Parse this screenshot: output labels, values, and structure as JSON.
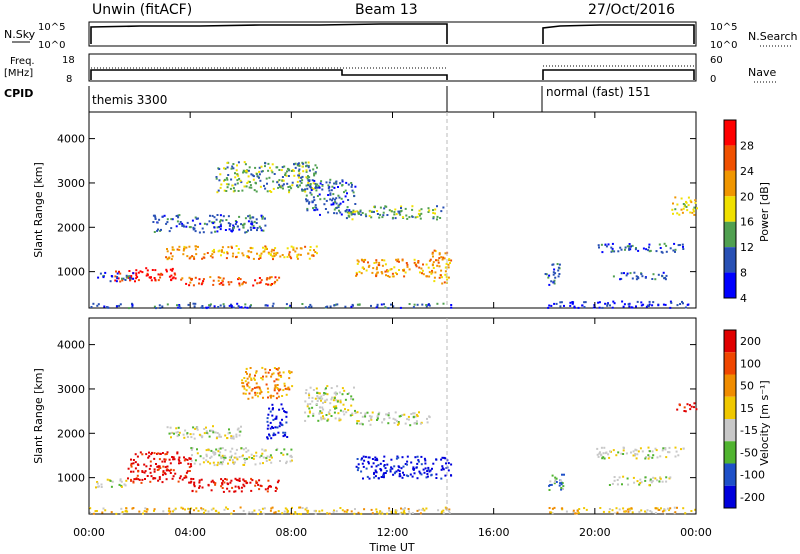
{
  "header": {
    "station": "Unwin (fitACF)",
    "beam": "Beam 13",
    "date": "27/Oct/2016"
  },
  "strips": {
    "nsky": {
      "label": "N.Sky",
      "ticks": [
        "10^5",
        "10^0"
      ]
    },
    "nsearch": {
      "label": "N.Search",
      "ticks": [
        "10^5",
        "10^0"
      ]
    },
    "freq": {
      "label_line1": "Freq.",
      "label_line2": "[MHz]",
      "ticks": [
        "18",
        "8"
      ]
    },
    "nave": {
      "label": "Nave",
      "ticks": [
        "60",
        "0"
      ]
    },
    "cpid": {
      "label": "CPID",
      "segments": [
        "themis 3300",
        "normal (fast) 151"
      ]
    }
  },
  "panels": {
    "power": {
      "ylabel": "Slant Range [km]",
      "yticks": [
        "4000",
        "3000",
        "2000",
        "1000"
      ],
      "colorbar_label": "Power [dB]",
      "colorbar_ticks": [
        "28",
        "24",
        "20",
        "16",
        "12",
        "8",
        "4"
      ]
    },
    "velocity": {
      "ylabel": "Slant Range [km]",
      "yticks": [
        "4000",
        "3000",
        "2000",
        "1000"
      ],
      "colorbar_label": "Velocity [m s⁻¹]",
      "colorbar_ticks": [
        "200",
        "100",
        "50",
        "15",
        "-15",
        "-50",
        "-100",
        "-200"
      ]
    }
  },
  "xaxis": {
    "label": "Time UT",
    "ticks": [
      "00:00",
      "04:00",
      "08:00",
      "12:00",
      "16:00",
      "20:00",
      "00:00"
    ]
  },
  "chart_data": {
    "type": "heatmap",
    "x_unit": "hours UT",
    "x_range": [
      0,
      24
    ],
    "y_unit": "km",
    "y_range": [
      180,
      4600
    ],
    "data_gap_hours": [
      14.3,
      18.0
    ],
    "power_colors": [
      "#0000ff",
      "#2850b4",
      "#50a050",
      "#f0e000",
      "#f09600",
      "#f05000",
      "#ff0000"
    ],
    "power_levels_db": [
      4,
      8,
      12,
      16,
      20,
      24,
      28
    ],
    "velocity_colors": [
      "#0000dc",
      "#1e50c8",
      "#50b430",
      "#c8c8c8",
      "#f0c800",
      "#f08c00",
      "#f04600",
      "#e00000"
    ],
    "velocity_levels": [
      200,
      100,
      50,
      15,
      -15,
      -50,
      -100,
      -200
    ],
    "power_features": [
      {
        "t0": 1.0,
        "t1": 3.5,
        "r0": 800,
        "r1": 1100,
        "level": 6
      },
      {
        "t0": 3.5,
        "t1": 7.5,
        "r0": 700,
        "r1": 900,
        "level": 5
      },
      {
        "t0": 3.0,
        "t1": 9.0,
        "r0": 1300,
        "r1": 1600,
        "level": 4
      },
      {
        "t0": 0.3,
        "t1": 1.8,
        "r0": 800,
        "r1": 1000,
        "level": 1
      },
      {
        "t0": 2.5,
        "t1": 7.0,
        "r0": 1900,
        "r1": 2300,
        "level": 1
      },
      {
        "t0": 5.0,
        "t1": 9.0,
        "r0": 2800,
        "r1": 3500,
        "level": 2
      },
      {
        "t0": 8.5,
        "t1": 10.5,
        "r0": 2300,
        "r1": 3100,
        "level": 1
      },
      {
        "t0": 10.0,
        "t1": 14.0,
        "r0": 2200,
        "r1": 2500,
        "level": 2
      },
      {
        "t0": 10.5,
        "t1": 13.5,
        "r0": 900,
        "r1": 1300,
        "level": 4
      },
      {
        "t0": 13.5,
        "t1": 14.3,
        "r0": 700,
        "r1": 1500,
        "level": 4
      },
      {
        "t0": 18.0,
        "t1": 18.6,
        "r0": 700,
        "r1": 1200,
        "level": 1
      },
      {
        "t0": 20.0,
        "t1": 23.5,
        "r0": 1450,
        "r1": 1650,
        "level": 1
      },
      {
        "t0": 20.5,
        "t1": 23.0,
        "r0": 850,
        "r1": 1000,
        "level": 1
      },
      {
        "t0": 23.0,
        "t1": 24.0,
        "r0": 2300,
        "r1": 2700,
        "level": 3
      },
      {
        "t0": 18.0,
        "t1": 24.0,
        "r0": 200,
        "r1": 350,
        "level": 0
      },
      {
        "t0": 0.0,
        "t1": 14.3,
        "r0": 200,
        "r1": 300,
        "level": 1
      }
    ],
    "velocity_features": [
      {
        "t0": 1.5,
        "t1": 4.0,
        "r0": 900,
        "r1": 1600,
        "level": 7
      },
      {
        "t0": 4.0,
        "t1": 7.5,
        "r0": 700,
        "r1": 1000,
        "level": 7
      },
      {
        "t0": 4.0,
        "t1": 8.0,
        "r0": 1300,
        "r1": 1700,
        "level": 3
      },
      {
        "t0": 0.2,
        "t1": 1.5,
        "r0": 800,
        "r1": 1000,
        "level": 3
      },
      {
        "t0": 3.0,
        "t1": 6.0,
        "r0": 1900,
        "r1": 2200,
        "level": 3
      },
      {
        "t0": 6.0,
        "t1": 8.0,
        "r0": 2800,
        "r1": 3500,
        "level": 5
      },
      {
        "t0": 8.5,
        "t1": 10.5,
        "r0": 2300,
        "r1": 3100,
        "level": 3
      },
      {
        "t0": 10.5,
        "t1": 13.5,
        "r0": 2200,
        "r1": 2500,
        "level": 3
      },
      {
        "t0": 10.5,
        "t1": 14.3,
        "r0": 1000,
        "r1": 1500,
        "level": 0
      },
      {
        "t0": 7.0,
        "t1": 7.8,
        "r0": 1900,
        "r1": 2700,
        "level": 0
      },
      {
        "t0": 18.0,
        "t1": 18.8,
        "r0": 700,
        "r1": 1100,
        "level": 2
      },
      {
        "t0": 20.0,
        "t1": 23.5,
        "r0": 1450,
        "r1": 1700,
        "level": 3
      },
      {
        "t0": 20.5,
        "t1": 23.0,
        "r0": 850,
        "r1": 1050,
        "level": 3
      },
      {
        "t0": 23.2,
        "t1": 24.0,
        "r0": 2500,
        "r1": 2700,
        "level": 7
      },
      {
        "t0": 0.0,
        "t1": 14.3,
        "r0": 200,
        "r1": 350,
        "level": 4
      },
      {
        "t0": 18.0,
        "t1": 24.0,
        "r0": 200,
        "r1": 350,
        "level": 4
      }
    ]
  }
}
